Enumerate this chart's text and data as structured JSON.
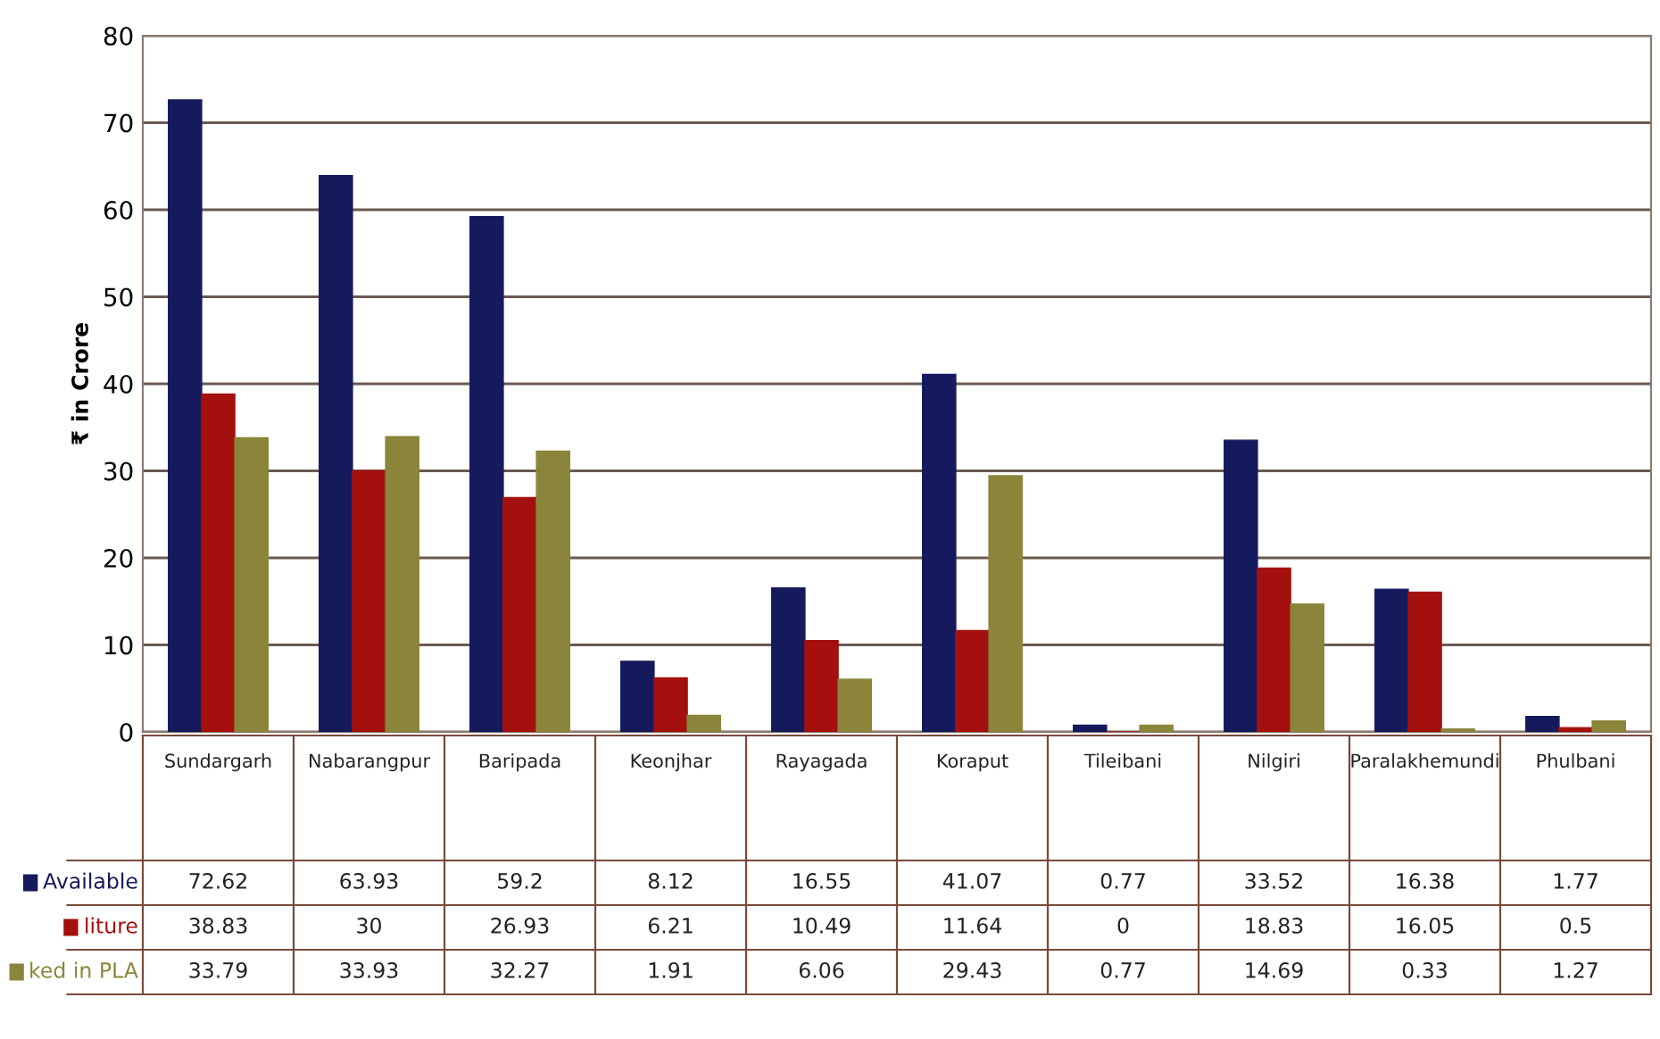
{
  "chart_data": {
    "type": "bar",
    "ylabel": "₹ in Crore",
    "categories": [
      "Sundargarh",
      "Nabarangpur",
      "Baripada",
      "Keonjhar",
      "Rayagada",
      "Koraput",
      "Tileibani",
      "Nilgiri",
      "Paralakhemundi",
      "Phulbani"
    ],
    "series": [
      {
        "name": "Available",
        "color": "#141a5c",
        "values": [
          72.62,
          63.93,
          59.2,
          8.12,
          16.55,
          41.07,
          0.77,
          33.52,
          16.38,
          1.77
        ]
      },
      {
        "name": "liture",
        "color": "#a3100d",
        "values": [
          38.83,
          30,
          26.93,
          6.21,
          10.49,
          11.64,
          0,
          18.83,
          16.05,
          0.5
        ]
      },
      {
        "name": "ked in PLA",
        "color": "#8a853a",
        "values": [
          33.79,
          33.93,
          32.27,
          1.91,
          6.06,
          29.43,
          0.77,
          14.69,
          0.33,
          1.27
        ]
      }
    ],
    "ylim": [
      0,
      80
    ],
    "yticks": [
      0,
      10,
      20,
      30,
      40,
      50,
      60,
      70,
      80
    ],
    "grid": "y",
    "data_labels": true,
    "legend": "left"
  }
}
